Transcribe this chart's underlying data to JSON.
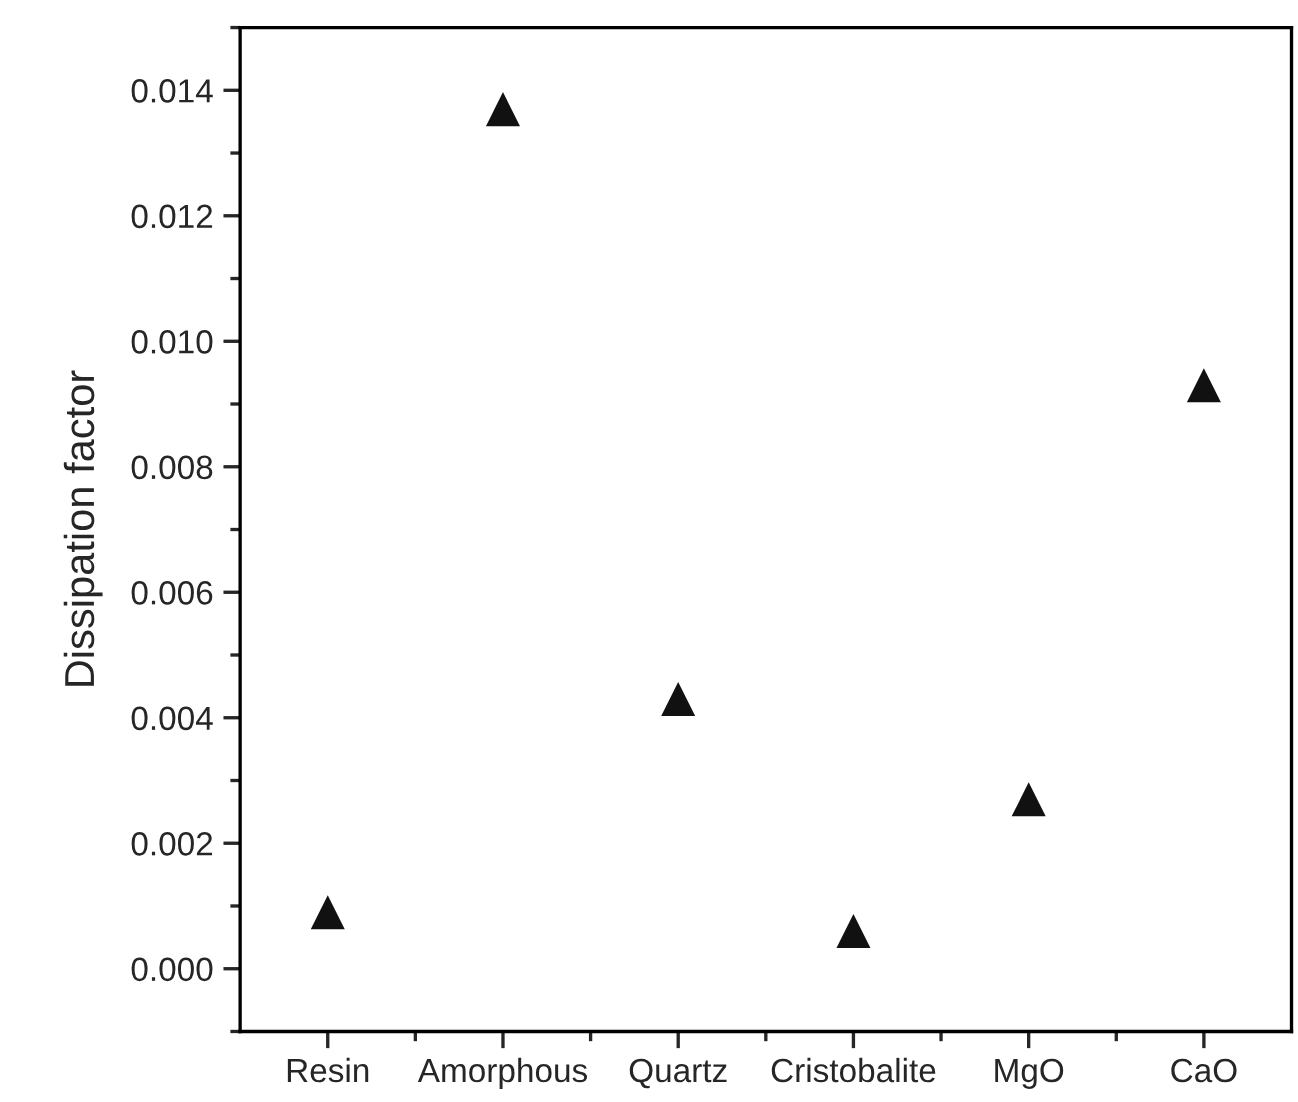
{
  "chart_data": {
    "type": "scatter",
    "ylabel": "Dissipation factor",
    "categories": [
      "Resin",
      "Amorphous",
      "Quartz",
      "Cristobalite",
      "MgO",
      "CaO"
    ],
    "series": [
      {
        "color": "#111111",
        "values": [
          0.0009,
          0.0137,
          0.0043,
          0.0006,
          0.0027,
          0.0093
        ]
      }
    ],
    "marker": "triangle",
    "ylim": [
      -0.001,
      0.015
    ],
    "yticks": [
      {
        "value": 0,
        "label": "0.000"
      },
      {
        "value": 0.002,
        "label": "0.002"
      },
      {
        "value": 0.004,
        "label": "0.004"
      },
      {
        "value": 0.006,
        "label": "0.006"
      },
      {
        "value": 0.008,
        "label": "0.008"
      },
      {
        "value": 0.01,
        "label": "0.010"
      },
      {
        "value": 0.012,
        "label": "0.012"
      },
      {
        "value": 0.014,
        "label": "0.014"
      }
    ],
    "grid": false,
    "legend": false
  }
}
